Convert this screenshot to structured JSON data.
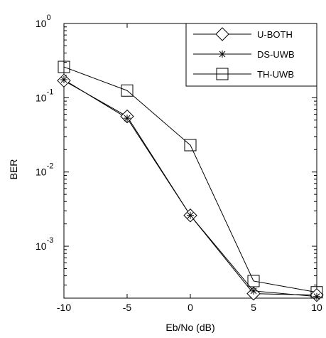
{
  "chart_data": {
    "type": "line",
    "xlabel": "Eb/No (dB)",
    "ylabel": "BER",
    "xlim": [
      -10,
      10
    ],
    "ylim": [
      0.0002,
      1
    ],
    "yscale": "log",
    "x_ticks": [
      -10,
      -5,
      0,
      5,
      10
    ],
    "y_ticks": [
      {
        "base": "10",
        "exp": "0",
        "value": 1
      },
      {
        "base": "10",
        "exp": "-1",
        "value": 0.1
      },
      {
        "base": "10",
        "exp": "-2",
        "value": 0.01
      },
      {
        "base": "10",
        "exp": "-3",
        "value": 0.001
      }
    ],
    "grid": false,
    "legend_position": "top-right",
    "series": [
      {
        "name": "U-BOTH",
        "marker": "diamond",
        "color": "#000000",
        "x": [
          -10,
          -5,
          0,
          5,
          10
        ],
        "y": [
          0.17,
          0.056,
          0.0026,
          0.00023,
          0.00022
        ]
      },
      {
        "name": "DS-UWB",
        "marker": "star",
        "color": "#000000",
        "x": [
          -10,
          -5,
          0,
          5,
          10
        ],
        "y": [
          0.175,
          0.053,
          0.0026,
          0.00025,
          0.00021
        ]
      },
      {
        "name": "TH-UWB",
        "marker": "square",
        "color": "#000000",
        "x": [
          -10,
          -5,
          0,
          5,
          10
        ],
        "y": [
          0.26,
          0.125,
          0.023,
          0.00034,
          0.00024
        ]
      }
    ]
  }
}
